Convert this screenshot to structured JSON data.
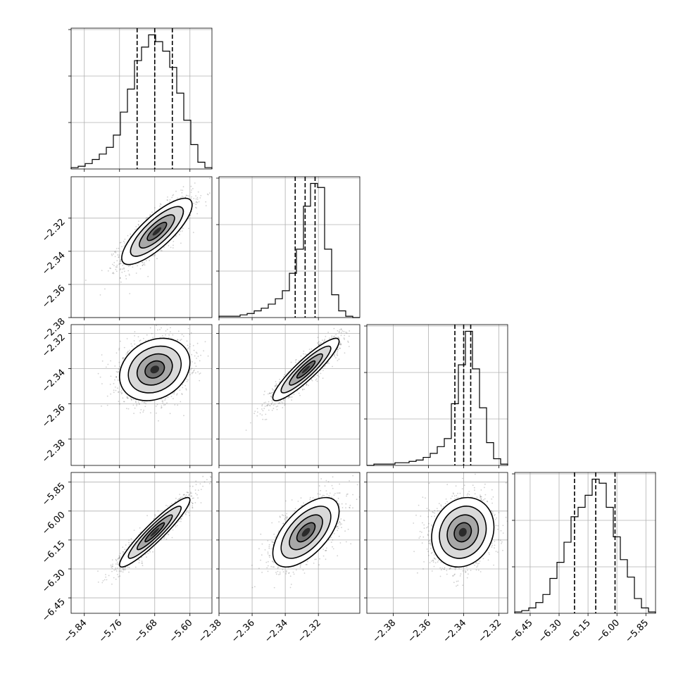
{
  "chart_data": {
    "type": "corner",
    "grid": true,
    "parameters": [
      {
        "index": 0,
        "range": [
          -5.87,
          -5.55
        ],
        "ticks": [
          -5.84,
          -5.76,
          -5.68,
          -5.6
        ],
        "tick_labels": [
          "−5.84",
          "−5.76",
          "−5.68",
          "−5.60"
        ],
        "quantiles": [
          -5.72,
          -5.68,
          -5.64
        ],
        "hist_edges": [
          -5.87,
          -5.854,
          -5.838,
          -5.822,
          -5.806,
          -5.79,
          -5.774,
          -5.758,
          -5.742,
          -5.726,
          -5.71,
          -5.694,
          -5.678,
          -5.662,
          -5.646,
          -5.63,
          -5.614,
          -5.598,
          -5.582,
          -5.566,
          -5.55
        ],
        "hist_counts": [
          0.01,
          0.02,
          0.04,
          0.07,
          0.11,
          0.16,
          0.25,
          0.42,
          0.59,
          0.8,
          0.9,
          0.99,
          0.94,
          0.87,
          0.75,
          0.56,
          0.36,
          0.18,
          0.05,
          0.01
        ]
      },
      {
        "index": 1,
        "range": [
          -2.38,
          -2.295
        ],
        "ticks": [
          -2.38,
          -2.36,
          -2.34,
          -2.32
        ],
        "tick_labels": [
          "−2.38",
          "−2.36",
          "−2.34",
          "−2.32"
        ],
        "quantiles": [
          -2.334,
          -2.328,
          -2.322
        ],
        "hist_edges": [
          -2.38,
          -2.37575,
          -2.3715,
          -2.36725,
          -2.363,
          -2.35875,
          -2.3545,
          -2.35025,
          -2.346,
          -2.34175,
          -2.3375,
          -2.33325,
          -2.329,
          -2.32475,
          -2.3205,
          -2.31625,
          -2.312,
          -2.30775,
          -2.3035,
          -2.29925,
          -2.295
        ],
        "hist_counts": [
          0.01,
          0.01,
          0.01,
          0.02,
          0.03,
          0.05,
          0.07,
          0.1,
          0.14,
          0.2,
          0.33,
          0.51,
          0.83,
          1.0,
          0.97,
          0.51,
          0.17,
          0.05,
          0.01,
          0.0
        ]
      },
      {
        "index": 2,
        "range": [
          -2.395,
          -2.315
        ],
        "ticks": [
          -2.38,
          -2.36,
          -2.34,
          -2.32
        ],
        "tick_labels": [
          "−2.38",
          "−2.36",
          "−2.34",
          "−2.32"
        ],
        "quantiles": [
          -2.345,
          -2.34,
          -2.336
        ],
        "hist_edges": [
          -2.395,
          -2.391,
          -2.387,
          -2.383,
          -2.379,
          -2.375,
          -2.371,
          -2.367,
          -2.363,
          -2.359,
          -2.355,
          -2.351,
          -2.347,
          -2.343,
          -2.339,
          -2.335,
          -2.331,
          -2.327,
          -2.323,
          -2.319,
          -2.315
        ],
        "hist_counts": [
          0.0,
          0.01,
          0.01,
          0.01,
          0.02,
          0.02,
          0.03,
          0.04,
          0.06,
          0.09,
          0.14,
          0.2,
          0.46,
          0.75,
          1.0,
          0.72,
          0.43,
          0.17,
          0.05,
          0.01
        ]
      },
      {
        "index": 3,
        "range": [
          -6.53,
          -5.8
        ],
        "ticks": [
          -6.45,
          -6.3,
          -6.15,
          -6.0,
          -5.85
        ],
        "tick_labels": [
          "−6.45",
          "−6.30",
          "−6.15",
          "−6.00",
          "−5.85"
        ],
        "quantiles": [
          -6.22,
          -6.11,
          -6.01
        ],
        "hist_edges": [
          -6.53,
          -6.4935,
          -6.457,
          -6.4205,
          -6.384,
          -6.3475,
          -6.311,
          -6.2745,
          -6.238,
          -6.2015,
          -6.165,
          -6.1285,
          -6.092,
          -6.0555,
          -6.019,
          -5.9825,
          -5.946,
          -5.9095,
          -5.873,
          -5.8365,
          -5.8
        ],
        "hist_counts": [
          0.01,
          0.02,
          0.04,
          0.08,
          0.14,
          0.26,
          0.38,
          0.53,
          0.72,
          0.79,
          0.88,
          1.0,
          0.97,
          0.79,
          0.57,
          0.4,
          0.27,
          0.11,
          0.04,
          0.01
        ]
      }
    ],
    "pairs": [
      {
        "row": 1,
        "col": 0,
        "mean": [
          -5.675,
          -2.328
        ],
        "cov": [
          [
            0.0016,
            0.00032
          ],
          [
            0.00032,
            0.0001
          ]
        ]
      },
      {
        "row": 2,
        "col": 0,
        "mean": [
          -5.68,
          -2.3405
        ],
        "cov": [
          [
            0.0016,
            8e-05
          ],
          [
            8e-05,
            7.84e-05
          ]
        ]
      },
      {
        "row": 2,
        "col": 1,
        "mean": [
          -2.3275,
          -2.3405
        ],
        "cov": [
          [
            0.0001,
            8.02e-05
          ],
          [
            8.02e-05,
            7.84e-05
          ]
        ]
      },
      {
        "row": 3,
        "col": 0,
        "mean": [
          -5.68,
          -6.11
        ],
        "cov": [
          [
            0.0016,
            0.00336
          ],
          [
            0.00336,
            0.0081
          ]
        ]
      },
      {
        "row": 3,
        "col": 1,
        "mean": [
          -2.3275,
          -6.11
        ],
        "cov": [
          [
            0.0001,
            0.00054
          ],
          [
            0.00054,
            0.0081
          ]
        ]
      },
      {
        "row": 3,
        "col": 2,
        "mean": [
          -2.3405,
          -6.11
        ],
        "cov": [
          [
            7.84e-05,
            0.00012
          ],
          [
            0.00012,
            0.0081
          ]
        ]
      }
    ]
  }
}
